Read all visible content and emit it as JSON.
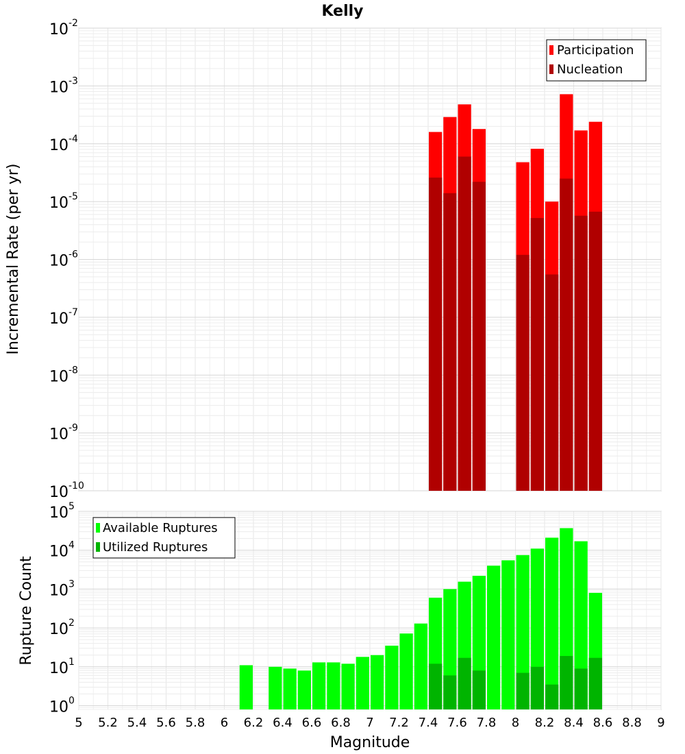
{
  "chart_data": [
    {
      "type": "bar",
      "title": "Kelly",
      "xlabel": "",
      "ylabel": "Incremental Rate (per yr)",
      "yscale": "log",
      "ylim": [
        1e-10,
        0.01
      ],
      "xlim": [
        5,
        9
      ],
      "grid": true,
      "legend_position": "top-right",
      "legend": [
        "Participation",
        "Nucleation"
      ],
      "x": [
        7.45,
        7.55,
        7.65,
        7.75,
        8.05,
        8.15,
        8.25,
        8.35,
        8.45,
        8.55
      ],
      "series": [
        {
          "name": "Participation",
          "color": "#ff0000",
          "values": [
            0.00016,
            0.00029,
            0.00048,
            0.00018,
            4.8e-05,
            8.2e-05,
            1e-05,
            0.00072,
            0.00017,
            0.00024
          ]
        },
        {
          "name": "Nucleation",
          "color": "#b00000",
          "values": [
            2.6e-05,
            1.4e-05,
            6e-05,
            2.2e-05,
            1.2e-06,
            5.2e-06,
            5.5e-07,
            2.5e-05,
            5.7e-06,
            6.7e-06
          ]
        }
      ]
    },
    {
      "type": "bar",
      "title": "",
      "xlabel": "Magnitude",
      "ylabel": "Rupture Count",
      "yscale": "log",
      "ylim": [
        0.8,
        100000.0
      ],
      "xlim": [
        5,
        9
      ],
      "grid": true,
      "legend_position": "top-left",
      "legend": [
        "Available Ruptures",
        "Utilized Ruptures"
      ],
      "x": [
        6.15,
        6.35,
        6.45,
        6.55,
        6.65,
        6.75,
        6.85,
        6.95,
        7.05,
        7.15,
        7.25,
        7.35,
        7.45,
        7.55,
        7.65,
        7.75,
        7.85,
        7.95,
        8.05,
        8.15,
        8.25,
        8.35,
        8.45,
        8.55
      ],
      "series": [
        {
          "name": "Available Ruptures",
          "color": "#00ff00",
          "values": [
            11,
            10,
            9,
            8,
            13,
            13,
            12,
            18,
            20,
            35,
            72,
            130,
            600,
            1000,
            1550,
            2200,
            4000,
            5500,
            7500,
            11000,
            21000,
            37000,
            17000,
            800
          ]
        },
        {
          "name": "Utilized Ruptures",
          "color": "#00b400",
          "values": [
            null,
            null,
            null,
            null,
            null,
            null,
            null,
            null,
            null,
            null,
            null,
            null,
            12,
            6,
            17,
            8,
            null,
            null,
            7,
            10,
            3.5,
            19,
            9,
            17
          ]
        }
      ]
    }
  ],
  "x_ticks": [
    "5",
    "5.2",
    "5.4",
    "5.6",
    "5.8",
    "6",
    "6.2",
    "6.4",
    "6.6",
    "6.8",
    "7",
    "7.2",
    "7.4",
    "7.6",
    "7.8",
    "8",
    "8.2",
    "8.4",
    "8.6",
    "8.8",
    "9"
  ],
  "x_axis_label": "Magnitude",
  "top_y_ticks": [
    {
      "base": "10",
      "exp": "-2"
    },
    {
      "base": "10",
      "exp": "-3"
    },
    {
      "base": "10",
      "exp": "-4"
    },
    {
      "base": "10",
      "exp": "-5"
    },
    {
      "base": "10",
      "exp": "-6"
    },
    {
      "base": "10",
      "exp": "-7"
    },
    {
      "base": "10",
      "exp": "-8"
    },
    {
      "base": "10",
      "exp": "-9"
    },
    {
      "base": "10",
      "exp": "-10"
    }
  ],
  "bottom_y_ticks": [
    {
      "base": "10",
      "exp": "5"
    },
    {
      "base": "10",
      "exp": "4"
    },
    {
      "base": "10",
      "exp": "3"
    },
    {
      "base": "10",
      "exp": "2"
    },
    {
      "base": "10",
      "exp": "1"
    },
    {
      "base": "10",
      "exp": "0"
    }
  ]
}
